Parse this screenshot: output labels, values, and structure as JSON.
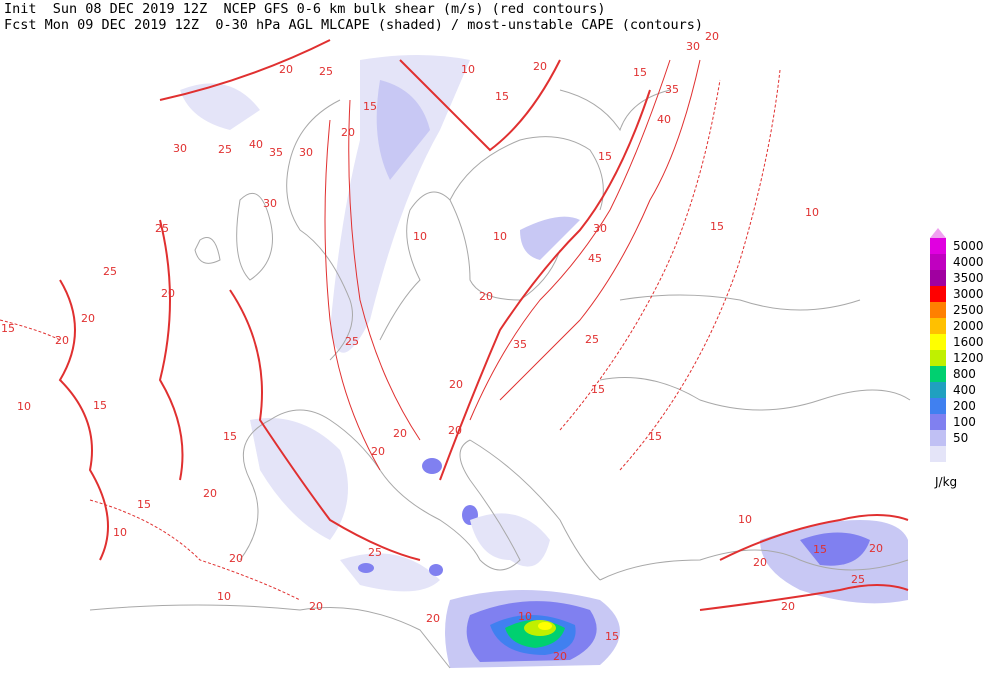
{
  "header": {
    "line1": "Init  Sun 08 DEC 2019 12Z  NCEP GFS 0-6 km bulk shear (m/s) (red contours)",
    "line2": "Fcst Mon 09 DEC 2019 12Z  0-30 hPa AGL MLCAPE (shaded) / most-unstable CAPE (contours)"
  },
  "legend": {
    "levels": [
      {
        "value": 5000,
        "color": "#e000e0"
      },
      {
        "value": 4000,
        "color": "#c000c0"
      },
      {
        "value": 3500,
        "color": "#a000a0"
      },
      {
        "value": 3000,
        "color": "#ff0000"
      },
      {
        "value": 2500,
        "color": "#ff8000"
      },
      {
        "value": 2000,
        "color": "#ffc000"
      },
      {
        "value": 1600,
        "color": "#ffff00"
      },
      {
        "value": 1200,
        "color": "#c0f000"
      },
      {
        "value": 800,
        "color": "#00d070"
      },
      {
        "value": 400,
        "color": "#20a0c0"
      },
      {
        "value": 200,
        "color": "#4080f0"
      },
      {
        "value": 100,
        "color": "#8080f0"
      },
      {
        "value": 50,
        "color": "#c0c0f4"
      }
    ],
    "under_color": "#e4e4f8",
    "over_color": "#f0a0f0",
    "unit": "J/kg"
  },
  "contour_labels": [
    20,
    25,
    15,
    20,
    40,
    35,
    30,
    30,
    25,
    30,
    25,
    20,
    25,
    20,
    15,
    20,
    10,
    15,
    15,
    20,
    15,
    10,
    20,
    10,
    20,
    25,
    20,
    20,
    35,
    45,
    30,
    15,
    40,
    35,
    15,
    30,
    20,
    20,
    15,
    10,
    10,
    10,
    10,
    15,
    15,
    15,
    10,
    20,
    25,
    20,
    15,
    20,
    10,
    20,
    15,
    20,
    25,
    20,
    20,
    20,
    25
  ]
}
